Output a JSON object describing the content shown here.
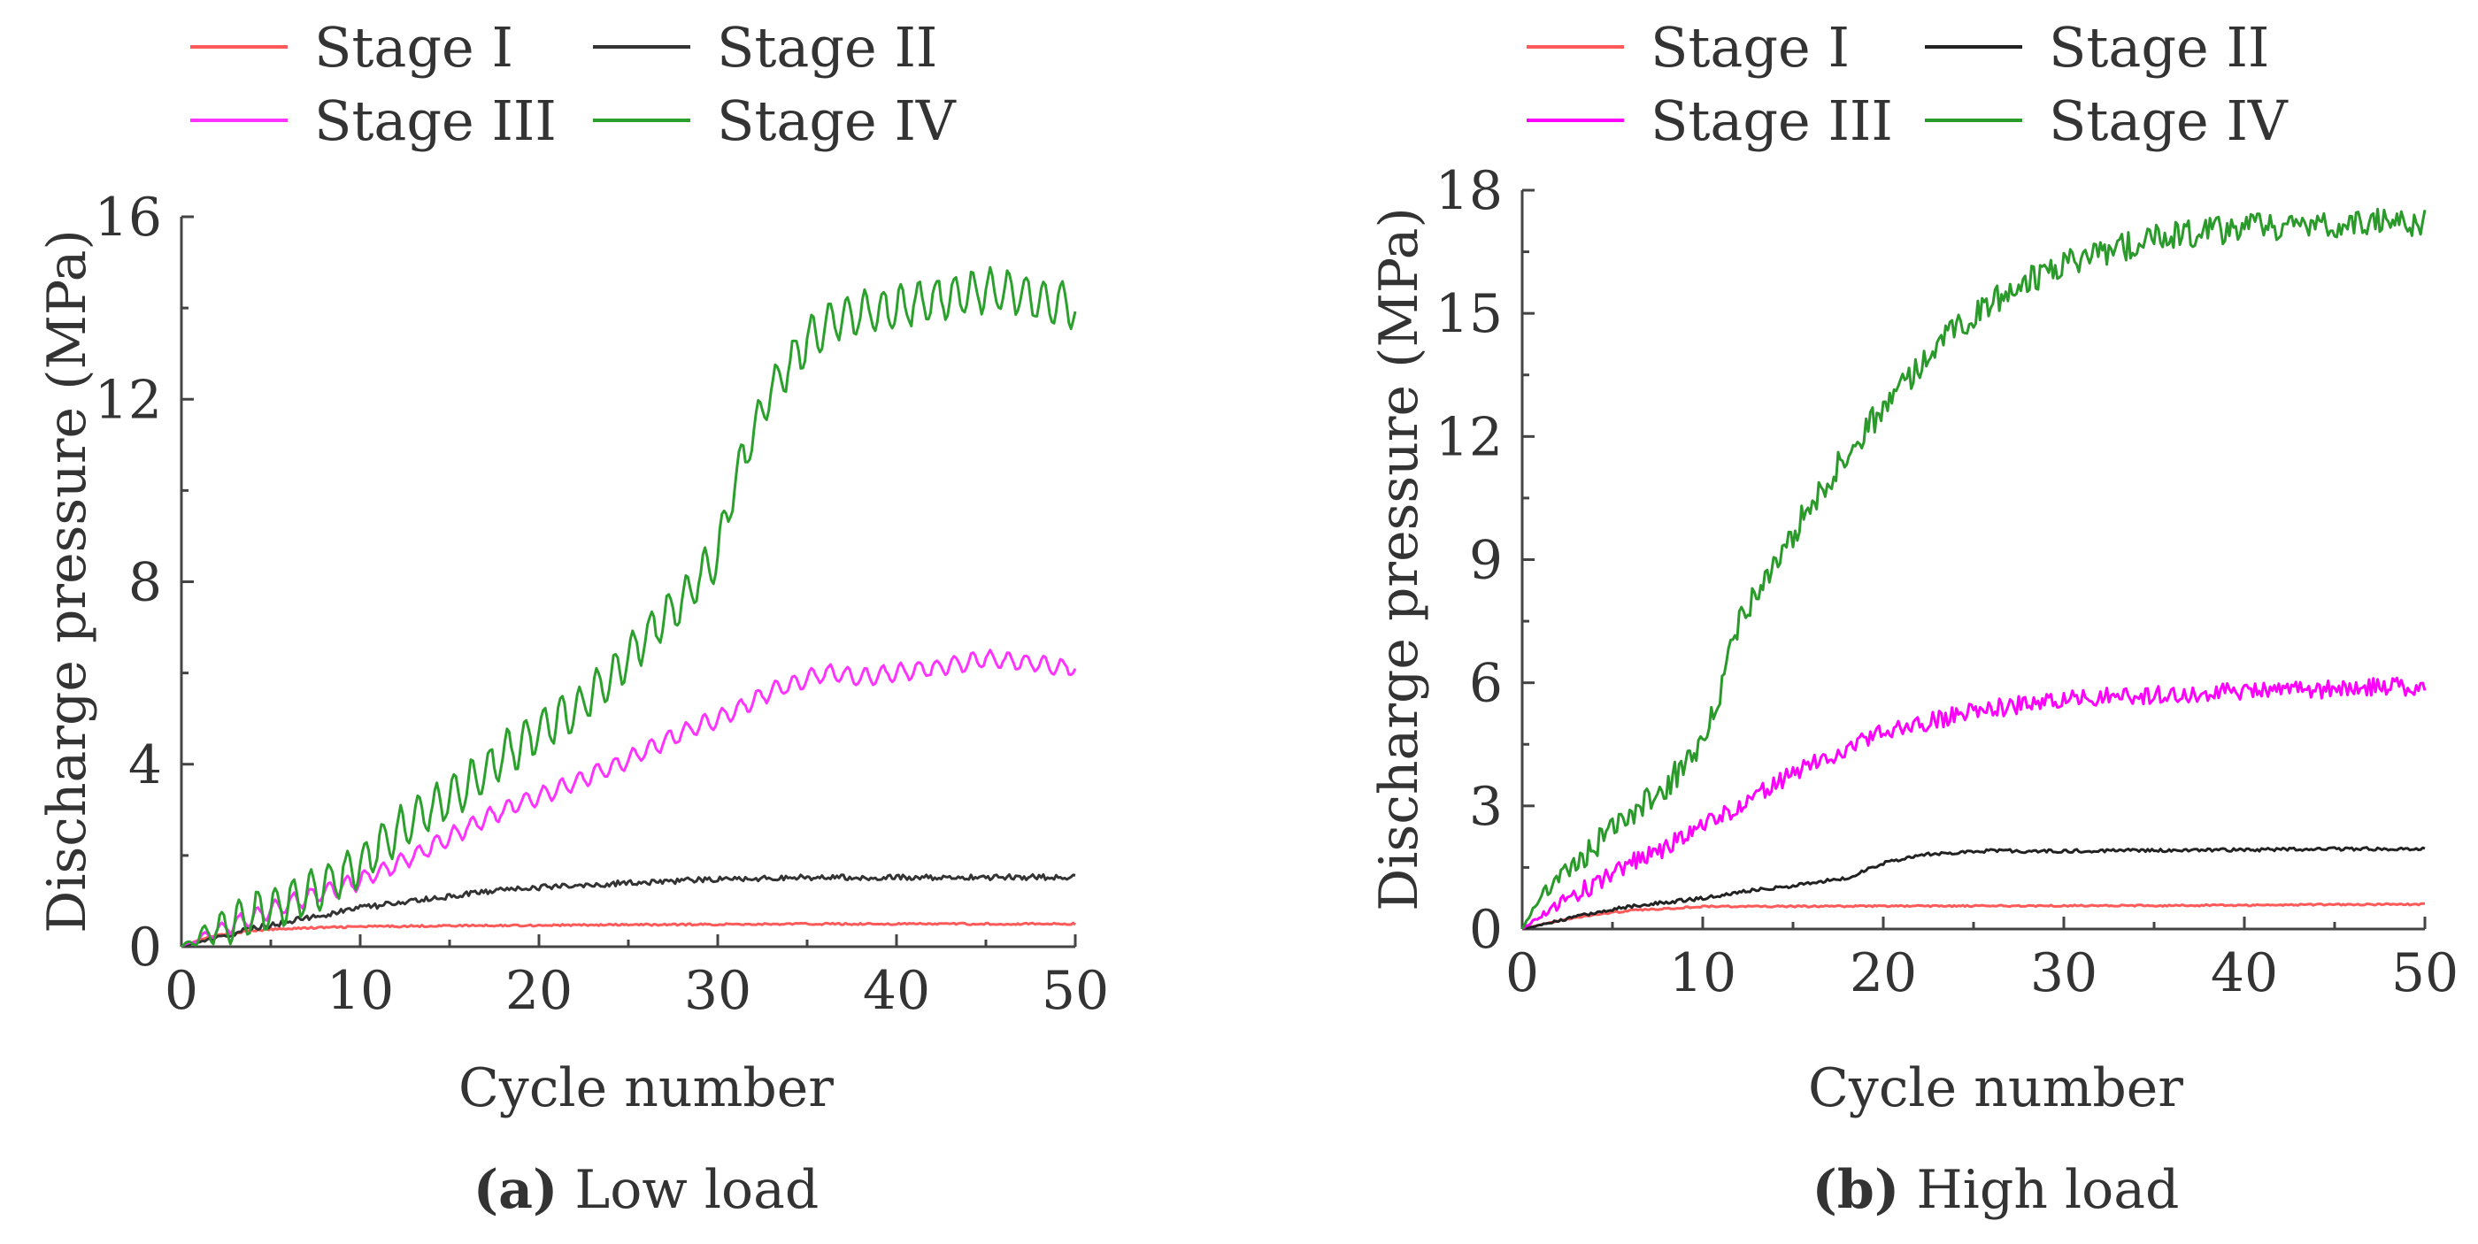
{
  "chart_data": [
    {
      "type": "line",
      "caption_label": "(a)",
      "caption_text": "Low load",
      "xlabel": "Cycle number",
      "ylabel": "Discharge pressure (MPa)",
      "xlim": [
        0,
        50
      ],
      "ylim": [
        0,
        16
      ],
      "xticks": [
        0,
        10,
        20,
        30,
        40,
        50
      ],
      "yticks": [
        0,
        4,
        8,
        12,
        16
      ],
      "xtick_labels": [
        "0",
        "10",
        "20",
        "30",
        "40",
        "50"
      ],
      "ytick_labels": [
        "0",
        "4",
        "8",
        "12",
        "16"
      ],
      "legend": "top",
      "series": [
        {
          "name": "Stage I",
          "color": "#ff5a5a",
          "x": [
            0,
            1,
            2,
            3,
            4,
            5,
            6,
            8,
            10,
            15,
            20,
            25,
            30,
            35,
            40,
            45,
            50
          ],
          "values": [
            0,
            0.15,
            0.25,
            0.31,
            0.35,
            0.38,
            0.4,
            0.42,
            0.44,
            0.46,
            0.47,
            0.48,
            0.49,
            0.5,
            0.5,
            0.5,
            0.5
          ]
        },
        {
          "name": "Stage II",
          "color": "#333333",
          "x": [
            0,
            2,
            4,
            6,
            8,
            10,
            12,
            15,
            18,
            20,
            25,
            30,
            35,
            40,
            45,
            50
          ],
          "values": [
            0,
            0.2,
            0.4,
            0.55,
            0.7,
            0.85,
            0.95,
            1.1,
            1.25,
            1.3,
            1.4,
            1.48,
            1.52,
            1.52,
            1.52,
            1.53
          ]
        },
        {
          "name": "Stage III",
          "color": "#ff33ff",
          "x": [
            0,
            2,
            4,
            6,
            8,
            10,
            12,
            15,
            18,
            20,
            22,
            25,
            28,
            30,
            33,
            36,
            38,
            40,
            42,
            45,
            48,
            50
          ],
          "values": [
            0,
            0.35,
            0.65,
            0.95,
            1.2,
            1.45,
            1.8,
            2.4,
            3.0,
            3.3,
            3.6,
            4.1,
            4.7,
            5.0,
            5.6,
            6.0,
            5.9,
            6.0,
            6.1,
            6.3,
            6.2,
            6.1
          ]
        },
        {
          "name": "Stage IV",
          "color": "#2ca02c",
          "x": [
            0,
            2,
            4,
            6,
            8,
            10,
            12,
            15,
            17,
            18,
            20,
            22,
            24,
            26,
            28,
            30,
            31,
            33,
            35,
            37,
            40,
            42,
            45,
            47,
            50
          ],
          "values": [
            0,
            0.4,
            0.7,
            1.0,
            1.35,
            1.8,
            2.5,
            3.3,
            3.8,
            4.2,
            4.7,
            5.2,
            5.9,
            6.8,
            7.6,
            8.6,
            10.3,
            12.2,
            13.3,
            13.8,
            14.0,
            14.2,
            14.4,
            14.3,
            14.0
          ]
        }
      ]
    },
    {
      "type": "line",
      "caption_label": "(b)",
      "caption_text": "High load",
      "xlabel": "Cycle number",
      "ylabel": "Discharge pressure (MPa)",
      "xlim": [
        0,
        50
      ],
      "ylim": [
        0,
        18
      ],
      "xticks": [
        0,
        10,
        20,
        30,
        40,
        50
      ],
      "yticks": [
        0,
        3,
        6,
        9,
        12,
        15,
        18
      ],
      "xtick_labels": [
        "0",
        "10",
        "20",
        "30",
        "40",
        "50"
      ],
      "ytick_labels": [
        "0",
        "3",
        "6",
        "9",
        "12",
        "15",
        "18"
      ],
      "legend": "top",
      "series": [
        {
          "name": "Stage I",
          "color": "#ff5a5a",
          "x": [
            0,
            2,
            4,
            6,
            8,
            10,
            15,
            20,
            25,
            30,
            35,
            40,
            45,
            50
          ],
          "values": [
            0,
            0.2,
            0.35,
            0.45,
            0.5,
            0.55,
            0.55,
            0.56,
            0.56,
            0.57,
            0.57,
            0.58,
            0.6,
            0.6
          ]
        },
        {
          "name": "Stage II",
          "color": "#222222",
          "x": [
            0,
            2,
            4,
            6,
            8,
            10,
            12,
            15,
            18,
            20,
            22,
            25,
            30,
            35,
            40,
            45,
            50
          ],
          "values": [
            0,
            0.2,
            0.4,
            0.55,
            0.65,
            0.75,
            0.9,
            1.05,
            1.25,
            1.6,
            1.8,
            1.9,
            1.9,
            1.92,
            1.93,
            1.95,
            1.95
          ]
        },
        {
          "name": "Stage III",
          "color": "#ff00ff",
          "x": [
            0,
            2,
            4,
            6,
            8,
            10,
            12,
            15,
            18,
            20,
            22,
            25,
            28,
            30,
            33,
            36,
            40,
            43,
            46,
            50
          ],
          "values": [
            0,
            0.6,
            1.1,
            1.6,
            2.0,
            2.5,
            3.0,
            3.8,
            4.4,
            4.8,
            5.0,
            5.3,
            5.5,
            5.6,
            5.7,
            5.7,
            5.8,
            5.8,
            5.9,
            5.9
          ]
        },
        {
          "name": "Stage IV",
          "color": "#2a9a2a",
          "x": [
            0,
            1,
            2,
            4,
            6,
            8,
            10,
            11,
            12,
            14,
            16,
            18,
            20,
            22,
            24,
            26,
            28,
            30,
            32,
            35,
            38,
            40,
            43,
            46,
            48,
            50
          ],
          "values": [
            0,
            0.8,
            1.2,
            2.0,
            2.8,
            3.5,
            4.5,
            5.8,
            7.5,
            9.0,
            10.3,
            11.6,
            12.7,
            13.7,
            14.6,
            15.3,
            15.8,
            16.2,
            16.5,
            16.8,
            17.0,
            17.1,
            17.1,
            17.2,
            17.2,
            17.2
          ]
        }
      ]
    }
  ]
}
